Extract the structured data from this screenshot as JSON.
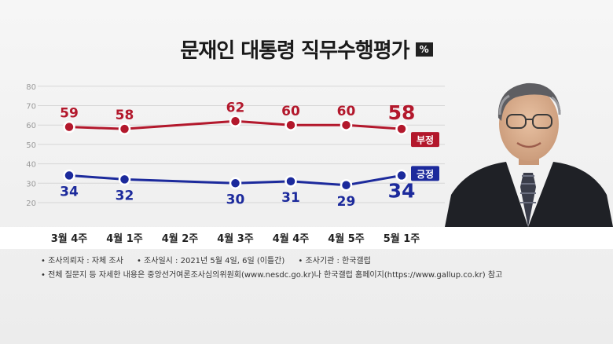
{
  "title": "문재인 대통령 직무수행평가",
  "unit_badge": "%",
  "chart_data": {
    "type": "line",
    "title": "문재인 대통령 직무수행평가",
    "unit": "%",
    "categories": [
      "3월 4주",
      "4월 1주",
      "4월 2주",
      "4월 3주",
      "4월 4주",
      "4월 5주",
      "5월 1주"
    ],
    "yticks": [
      20,
      30,
      40,
      50,
      60,
      70,
      80
    ],
    "ylim": [
      20,
      80
    ],
    "grid": true,
    "series": [
      {
        "name": "부정",
        "color": "#b3182c",
        "values": [
          59,
          58,
          null,
          62,
          60,
          60,
          58
        ]
      },
      {
        "name": "긍정",
        "color": "#1c2a9c",
        "values": [
          34,
          32,
          null,
          30,
          31,
          29,
          34
        ]
      }
    ]
  },
  "notes": {
    "line1": [
      "• 조사의뢰자 : 자체 조사",
      "• 조사일시 : 2021년 5월 4일, 6일 (이틀간)",
      "• 조사기관 : 한국갤럽"
    ],
    "line2": "• 전체 질문지 등 자세한 내용은 중앙선거여론조사심의위원회(www.nesdc.go.kr)나 한국갤럽 홈페이지(https://www.gallup.co.kr) 참고"
  },
  "portrait": "president-portrait"
}
